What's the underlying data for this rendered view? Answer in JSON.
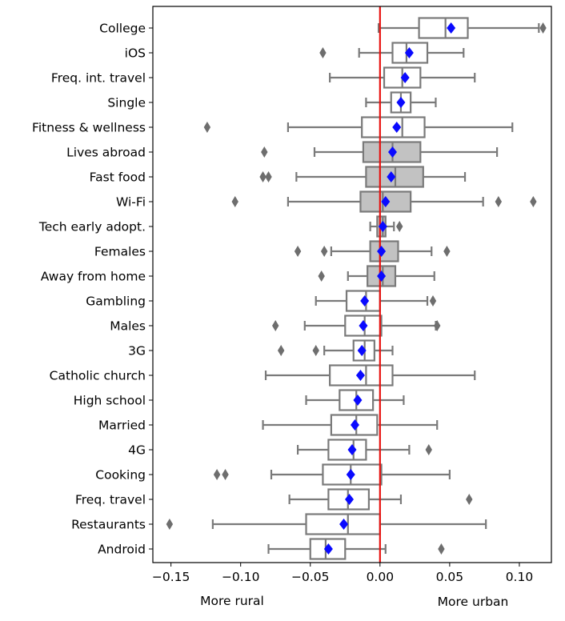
{
  "chart_data": {
    "type": "boxplot",
    "orientation": "horizontal",
    "title": "",
    "xlabel_left": "More rural",
    "xlabel_right": "More urban",
    "xlim": [
      -0.163,
      0.123
    ],
    "xticks": [
      -0.15,
      -0.1,
      -0.05,
      0.0,
      0.05,
      0.1
    ],
    "xtick_labels": [
      "−0.15",
      "−0.10",
      "−0.05",
      "0.00",
      "0.05",
      "0.10"
    ],
    "reference_line": {
      "x": 0.0,
      "color": "#e8110f"
    },
    "colors": {
      "box_edge": "#7a7a7a",
      "box_fill_plain": "#ffffff",
      "box_fill_highlight": "#c2c2c2",
      "mean_marker": "#0a0aff",
      "outlier": "#6e6e6e"
    },
    "categories": [
      {
        "label": "College",
        "q1": 0.028,
        "median": 0.047,
        "q3": 0.063,
        "whisker_low": -0.001,
        "whisker_high": 0.114,
        "mean": 0.051,
        "highlight": false,
        "outliers": [
          0.117
        ]
      },
      {
        "label": "iOS",
        "q1": 0.009,
        "median": 0.019,
        "q3": 0.034,
        "whisker_low": -0.015,
        "whisker_high": 0.06,
        "mean": 0.021,
        "highlight": false,
        "outliers": [
          -0.041
        ]
      },
      {
        "label": "Freq. int. travel",
        "q1": 0.003,
        "median": 0.016,
        "q3": 0.029,
        "whisker_low": -0.036,
        "whisker_high": 0.068,
        "mean": 0.018,
        "highlight": false,
        "outliers": []
      },
      {
        "label": "Single",
        "q1": 0.008,
        "median": 0.015,
        "q3": 0.022,
        "whisker_low": -0.01,
        "whisker_high": 0.04,
        "mean": 0.015,
        "highlight": false,
        "outliers": []
      },
      {
        "label": "Fitness & wellness",
        "q1": -0.013,
        "median": 0.016,
        "q3": 0.032,
        "whisker_low": -0.066,
        "whisker_high": 0.095,
        "mean": 0.012,
        "highlight": false,
        "outliers": [
          -0.124
        ]
      },
      {
        "label": "Lives abroad",
        "q1": -0.012,
        "median": 0.009,
        "q3": 0.029,
        "whisker_low": -0.047,
        "whisker_high": 0.084,
        "mean": 0.009,
        "highlight": true,
        "outliers": [
          -0.083
        ]
      },
      {
        "label": "Fast food",
        "q1": -0.01,
        "median": 0.011,
        "q3": 0.031,
        "whisker_low": -0.06,
        "whisker_high": 0.061,
        "mean": 0.008,
        "highlight": true,
        "outliers": [
          -0.084,
          -0.08
        ]
      },
      {
        "label": "Wi-Fi",
        "q1": -0.014,
        "median": 0.002,
        "q3": 0.022,
        "whisker_low": -0.066,
        "whisker_high": 0.074,
        "mean": 0.004,
        "highlight": true,
        "outliers": [
          -0.104,
          0.085,
          0.11
        ]
      },
      {
        "label": "Tech early adopt.",
        "q1": -0.002,
        "median": 0.002,
        "q3": 0.004,
        "whisker_low": -0.007,
        "whisker_high": 0.01,
        "mean": 0.002,
        "highlight": true,
        "outliers": [
          0.014
        ]
      },
      {
        "label": "Females",
        "q1": -0.007,
        "median": 0.0,
        "q3": 0.013,
        "whisker_low": -0.035,
        "whisker_high": 0.037,
        "mean": 0.001,
        "highlight": true,
        "outliers": [
          -0.059,
          -0.04,
          0.048
        ]
      },
      {
        "label": "Away from home",
        "q1": -0.009,
        "median": 0.002,
        "q3": 0.011,
        "whisker_low": -0.023,
        "whisker_high": 0.039,
        "mean": 0.001,
        "highlight": true,
        "outliers": [
          -0.042
        ]
      },
      {
        "label": "Gambling",
        "q1": -0.024,
        "median": -0.01,
        "q3": 0.0,
        "whisker_low": -0.046,
        "whisker_high": 0.034,
        "mean": -0.011,
        "highlight": false,
        "outliers": [
          0.038
        ]
      },
      {
        "label": "Males",
        "q1": -0.025,
        "median": -0.011,
        "q3": 0.001,
        "whisker_low": -0.054,
        "whisker_high": 0.04,
        "mean": -0.012,
        "highlight": false,
        "outliers": [
          -0.075,
          0.041
        ]
      },
      {
        "label": "3G",
        "q1": -0.019,
        "median": -0.011,
        "q3": -0.004,
        "whisker_low": -0.04,
        "whisker_high": 0.009,
        "mean": -0.013,
        "highlight": false,
        "outliers": [
          -0.071,
          -0.046
        ]
      },
      {
        "label": "Catholic church",
        "q1": -0.036,
        "median": -0.01,
        "q3": 0.009,
        "whisker_low": -0.082,
        "whisker_high": 0.068,
        "mean": -0.014,
        "highlight": false,
        "outliers": []
      },
      {
        "label": "High school",
        "q1": -0.029,
        "median": -0.017,
        "q3": -0.005,
        "whisker_low": -0.053,
        "whisker_high": 0.017,
        "mean": -0.016,
        "highlight": false,
        "outliers": []
      },
      {
        "label": "Married",
        "q1": -0.035,
        "median": -0.017,
        "q3": -0.002,
        "whisker_low": -0.084,
        "whisker_high": 0.041,
        "mean": -0.018,
        "highlight": false,
        "outliers": []
      },
      {
        "label": "4G",
        "q1": -0.037,
        "median": -0.019,
        "q3": -0.01,
        "whisker_low": -0.059,
        "whisker_high": 0.021,
        "mean": -0.02,
        "highlight": false,
        "outliers": [
          0.035
        ]
      },
      {
        "label": "Cooking",
        "q1": -0.041,
        "median": -0.021,
        "q3": 0.001,
        "whisker_low": -0.078,
        "whisker_high": 0.05,
        "mean": -0.021,
        "highlight": false,
        "outliers": [
          -0.117,
          -0.111
        ]
      },
      {
        "label": "Freq. travel",
        "q1": -0.037,
        "median": -0.023,
        "q3": -0.008,
        "whisker_low": -0.065,
        "whisker_high": 0.015,
        "mean": -0.022,
        "highlight": false,
        "outliers": [
          0.064
        ]
      },
      {
        "label": "Restaurants",
        "q1": -0.053,
        "median": -0.023,
        "q3": 0.0,
        "whisker_low": -0.12,
        "whisker_high": 0.076,
        "mean": -0.026,
        "highlight": false,
        "outliers": [
          -0.151
        ]
      },
      {
        "label": "Android",
        "q1": -0.05,
        "median": -0.039,
        "q3": -0.025,
        "whisker_low": -0.08,
        "whisker_high": 0.004,
        "mean": -0.037,
        "highlight": false,
        "outliers": [
          0.044
        ]
      }
    ]
  }
}
